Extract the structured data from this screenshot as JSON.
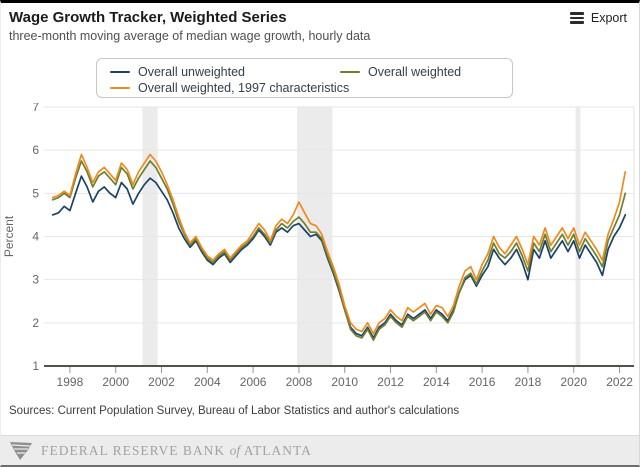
{
  "header": {
    "title": "Wage Growth Tracker, Weighted Series",
    "subtitle": "three-month moving average of median wage growth, hourly data",
    "export_label": "Export"
  },
  "legend": {
    "items": [
      {
        "label": "Overall unweighted",
        "color": "#1c4268"
      },
      {
        "label": "Overall weighted",
        "color": "#6e7f2f"
      },
      {
        "label": "Overall weighted, 1997 characteristics",
        "color": "#ef8a1f"
      }
    ]
  },
  "footer": {
    "sources": "Sources: Current Population Survey, Bureau of Labor Statistics and author's calculations",
    "bank_text_pre": "FEDERAL RESERVE BANK",
    "bank_text_of": "of",
    "bank_text_post": "ATLANTA"
  },
  "chart_data": {
    "type": "line",
    "title": "Wage Growth Tracker, Weighted Series",
    "subtitle": "three-month moving average of median wage growth, hourly data",
    "xlabel": "",
    "ylabel": "Percent",
    "ylim": [
      1,
      7
    ],
    "yticks": [
      1,
      2,
      3,
      4,
      5,
      6,
      7
    ],
    "xticks": [
      1998,
      2000,
      2002,
      2004,
      2006,
      2008,
      2010,
      2012,
      2014,
      2016,
      2018,
      2020,
      2022
    ],
    "xlim": [
      1997.0,
      2022.5
    ],
    "grid": "horizontal",
    "legend_position": "top",
    "x_start": 1997.25,
    "x_step": 0.25,
    "x_unit": "year (decimal, quarterly samples)",
    "recession_bands": [
      {
        "start": 2001.17,
        "end": 2001.83
      },
      {
        "start": 2007.92,
        "end": 2009.46
      },
      {
        "start": 2020.08,
        "end": 2020.29
      }
    ],
    "series": [
      {
        "name": "Overall unweighted",
        "color": "#1c4268",
        "values": [
          4.5,
          4.55,
          4.7,
          4.6,
          5.0,
          5.4,
          5.15,
          4.8,
          5.05,
          5.15,
          5.0,
          4.9,
          5.25,
          5.1,
          4.75,
          5.0,
          5.2,
          5.35,
          5.25,
          5.05,
          4.85,
          4.55,
          4.2,
          3.95,
          3.75,
          3.9,
          3.65,
          3.45,
          3.35,
          3.5,
          3.6,
          3.4,
          3.55,
          3.7,
          3.8,
          3.95,
          4.15,
          4.0,
          3.8,
          4.1,
          4.2,
          4.1,
          4.25,
          4.3,
          4.15,
          4.0,
          4.05,
          3.9,
          3.5,
          3.15,
          2.75,
          2.3,
          1.9,
          1.75,
          1.7,
          1.9,
          1.65,
          1.9,
          2.0,
          2.2,
          2.05,
          1.95,
          2.2,
          2.1,
          2.2,
          2.3,
          2.1,
          2.3,
          2.2,
          2.05,
          2.3,
          2.7,
          3.0,
          3.1,
          2.85,
          3.1,
          3.3,
          3.7,
          3.5,
          3.35,
          3.5,
          3.7,
          3.4,
          3.0,
          3.7,
          3.5,
          3.9,
          3.5,
          3.7,
          3.9,
          3.65,
          3.9,
          3.5,
          3.8,
          3.6,
          3.4,
          3.1,
          3.7,
          4.0,
          4.2,
          4.5
        ]
      },
      {
        "name": "Overall weighted",
        "color": "#6e7f2f",
        "values": [
          4.85,
          4.9,
          5.0,
          4.9,
          5.35,
          5.75,
          5.5,
          5.15,
          5.4,
          5.5,
          5.35,
          5.2,
          5.6,
          5.45,
          5.1,
          5.35,
          5.55,
          5.75,
          5.6,
          5.35,
          5.1,
          4.75,
          4.35,
          4.05,
          3.8,
          3.95,
          3.7,
          3.5,
          3.4,
          3.55,
          3.65,
          3.45,
          3.6,
          3.75,
          3.85,
          4.0,
          4.2,
          4.05,
          3.85,
          4.15,
          4.3,
          4.2,
          4.35,
          4.45,
          4.3,
          4.1,
          4.1,
          3.95,
          3.55,
          3.2,
          2.8,
          2.3,
          1.85,
          1.7,
          1.65,
          1.85,
          1.6,
          1.85,
          1.95,
          2.15,
          2.0,
          1.9,
          2.15,
          2.05,
          2.15,
          2.25,
          2.05,
          2.25,
          2.15,
          2.0,
          2.25,
          2.7,
          3.05,
          3.15,
          2.9,
          3.2,
          3.45,
          3.85,
          3.6,
          3.5,
          3.65,
          3.85,
          3.55,
          3.2,
          3.85,
          3.65,
          4.05,
          3.65,
          3.85,
          4.05,
          3.8,
          4.05,
          3.65,
          3.95,
          3.75,
          3.55,
          3.3,
          3.9,
          4.2,
          4.5,
          5.0
        ]
      },
      {
        "name": "Overall weighted, 1997 characteristics",
        "color": "#ef8a1f",
        "values": [
          4.9,
          4.95,
          5.05,
          4.95,
          5.45,
          5.9,
          5.6,
          5.25,
          5.5,
          5.6,
          5.45,
          5.3,
          5.7,
          5.55,
          5.2,
          5.5,
          5.7,
          5.9,
          5.75,
          5.5,
          5.2,
          4.85,
          4.45,
          4.1,
          3.85,
          4.0,
          3.75,
          3.55,
          3.45,
          3.6,
          3.7,
          3.5,
          3.65,
          3.8,
          3.9,
          4.1,
          4.3,
          4.15,
          3.9,
          4.25,
          4.4,
          4.3,
          4.5,
          4.8,
          4.55,
          4.3,
          4.25,
          4.05,
          3.65,
          3.3,
          2.9,
          2.4,
          2.0,
          1.85,
          1.8,
          2.0,
          1.75,
          2.0,
          2.1,
          2.3,
          2.15,
          2.05,
          2.35,
          2.25,
          2.35,
          2.45,
          2.2,
          2.4,
          2.35,
          2.15,
          2.4,
          2.85,
          3.2,
          3.3,
          3.0,
          3.35,
          3.6,
          4.0,
          3.75,
          3.6,
          3.8,
          4.0,
          3.7,
          3.35,
          4.0,
          3.8,
          4.2,
          3.8,
          4.0,
          4.2,
          3.95,
          4.2,
          3.8,
          4.1,
          3.9,
          3.7,
          3.45,
          4.05,
          4.4,
          4.8,
          5.5
        ]
      }
    ]
  }
}
